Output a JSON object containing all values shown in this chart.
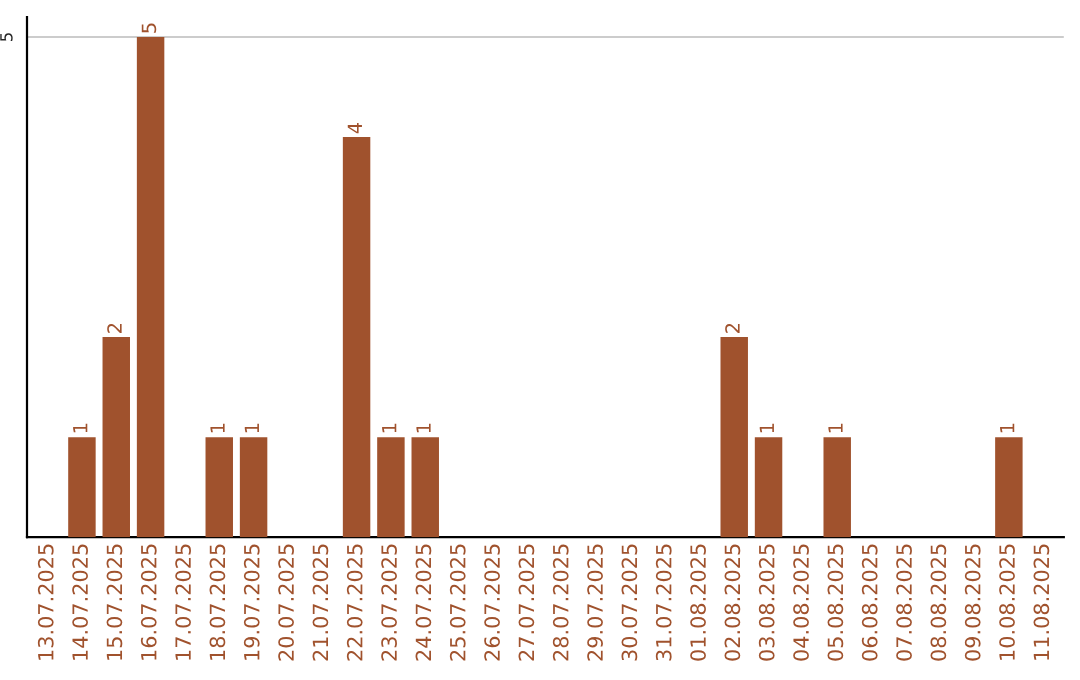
{
  "chart_data": {
    "type": "bar",
    "categories": [
      "13.07.2025",
      "14.07.2025",
      "15.07.2025",
      "16.07.2025",
      "17.07.2025",
      "18.07.2025",
      "19.07.2025",
      "20.07.2025",
      "21.07.2025",
      "22.07.2025",
      "23.07.2025",
      "24.07.2025",
      "25.07.2025",
      "26.07.2025",
      "27.07.2025",
      "28.07.2025",
      "29.07.2025",
      "30.07.2025",
      "31.07.2025",
      "01.08.2025",
      "02.08.2025",
      "03.08.2025",
      "04.08.2025",
      "05.08.2025",
      "06.08.2025",
      "07.08.2025",
      "08.08.2025",
      "09.08.2025",
      "10.08.2025",
      "11.08.2025"
    ],
    "values": [
      0,
      1,
      2,
      5,
      0,
      1,
      1,
      0,
      0,
      4,
      1,
      1,
      0,
      0,
      0,
      0,
      0,
      0,
      0,
      0,
      2,
      1,
      0,
      1,
      0,
      0,
      0,
      0,
      1,
      0
    ],
    "value_labels": [
      null,
      "1",
      "2",
      "5",
      null,
      "1",
      "1",
      null,
      null,
      "4",
      "1",
      "1",
      null,
      null,
      null,
      null,
      null,
      null,
      null,
      null,
      "2",
      "1",
      null,
      "1",
      null,
      null,
      null,
      null,
      "1",
      null
    ],
    "color": "#a0522d",
    "ylim": [
      0,
      5.2
    ],
    "yticks": [
      5
    ],
    "grid": "y"
  }
}
